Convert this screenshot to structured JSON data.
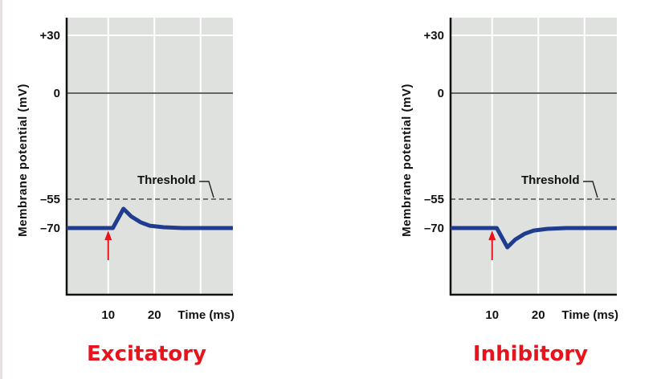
{
  "chart_data": [
    {
      "type": "line",
      "caption": "Excitatory",
      "ylabel": "Membrane potential (mV)",
      "xlabel": "Time (ms)",
      "xticks": [
        "10",
        "20"
      ],
      "yticks": [
        {
          "value": 30,
          "label": "+30"
        },
        {
          "value": 0,
          "label": "0"
        },
        {
          "value": -55,
          "label": "–55"
        },
        {
          "value": -70,
          "label": "–70"
        }
      ],
      "xlim": [
        1,
        37
      ],
      "ylim": [
        -105,
        39
      ],
      "grid": true,
      "threshold": {
        "value": -55,
        "label": "Threshold"
      },
      "stimulus_time": 10,
      "series": [
        {
          "x": [
            1,
            11,
            13.3,
            15,
            17,
            19,
            22,
            26,
            37
          ],
          "y": [
            -70,
            -70,
            -60,
            -64,
            -67,
            -68.8,
            -69.6,
            -70,
            -70
          ]
        }
      ]
    },
    {
      "type": "line",
      "caption": "Inhibitory",
      "ylabel": "Membrane potential (mV)",
      "xlabel": "Time (ms)",
      "xticks": [
        "10",
        "20"
      ],
      "yticks": [
        {
          "value": 30,
          "label": "+30"
        },
        {
          "value": 0,
          "label": "0"
        },
        {
          "value": -55,
          "label": "–55"
        },
        {
          "value": -70,
          "label": "–70"
        }
      ],
      "xlim": [
        1,
        37
      ],
      "ylim": [
        -105,
        39
      ],
      "grid": true,
      "threshold": {
        "value": -55,
        "label": "Threshold"
      },
      "stimulus_time": 10,
      "series": [
        {
          "x": [
            1,
            11,
            13.3,
            15,
            17,
            19,
            22,
            26,
            37
          ],
          "y": [
            -70,
            -70,
            -80,
            -76,
            -73,
            -71.3,
            -70.4,
            -70,
            -70
          ]
        }
      ]
    }
  ],
  "colors": {
    "plot_bg": "#dfe1df",
    "trace": "#1f3c8f",
    "stimulus_arrow": "#e8131b",
    "caption": "#e8131b",
    "zero_line": "#666666"
  }
}
